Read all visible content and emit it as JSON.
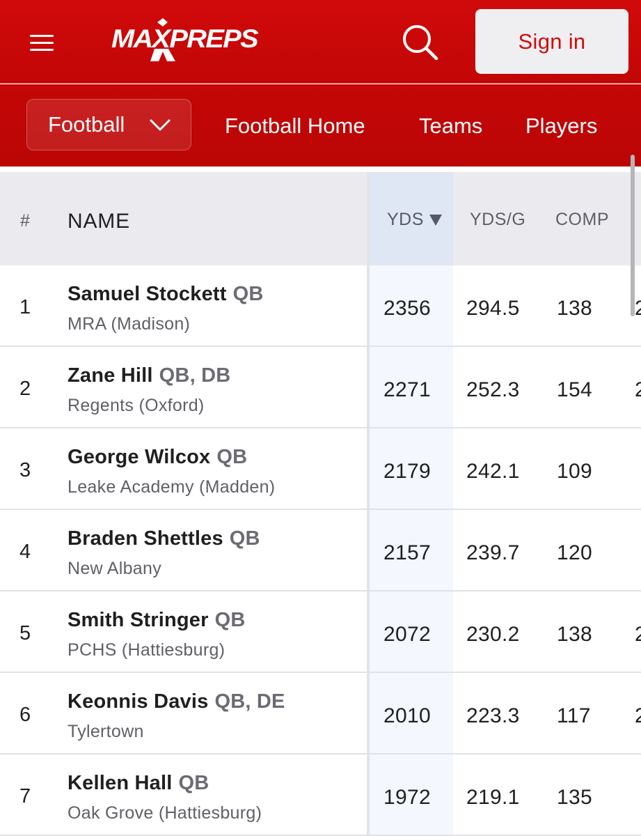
{
  "header": {
    "logo_text": "MAXPREPS",
    "signin_label": "Sign in",
    "menu_icon": "hamburger-menu-icon",
    "search_icon": "search-icon",
    "colors": {
      "brand_red": "#d10a0a",
      "header_bg": "#c20606"
    }
  },
  "subnav": {
    "sport_label": "Football",
    "links": [
      "Football Home",
      "Teams",
      "Players"
    ]
  },
  "table": {
    "columns": {
      "rank": "#",
      "name": "NAME",
      "yds": "YDS",
      "ydsg": "YDS/G",
      "comp": "COMP"
    },
    "sorted_column": "YDS",
    "sort_direction": "descending",
    "rows": [
      {
        "rank": "1",
        "name": "Samuel Stockett",
        "pos": "QB",
        "school": "MRA (Madison)",
        "yds": "2356",
        "ydsg": "294.5",
        "comp": "138",
        "next": "2"
      },
      {
        "rank": "2",
        "name": "Zane Hill",
        "pos": "QB, DB",
        "school": "Regents (Oxford)",
        "yds": "2271",
        "ydsg": "252.3",
        "comp": "154",
        "next": "2"
      },
      {
        "rank": "3",
        "name": "George Wilcox",
        "pos": "QB",
        "school": "Leake Academy (Madden)",
        "yds": "2179",
        "ydsg": "242.1",
        "comp": "109",
        "next": ""
      },
      {
        "rank": "4",
        "name": "Braden Shettles",
        "pos": "QB",
        "school": "New Albany",
        "yds": "2157",
        "ydsg": "239.7",
        "comp": "120",
        "next": ""
      },
      {
        "rank": "5",
        "name": "Smith Stringer",
        "pos": "QB",
        "school": "PCHS (Hattiesburg)",
        "yds": "2072",
        "ydsg": "230.2",
        "comp": "138",
        "next": "2"
      },
      {
        "rank": "6",
        "name": "Keonnis Davis",
        "pos": "QB, DE",
        "school": "Tylertown",
        "yds": "2010",
        "ydsg": "223.3",
        "comp": "117",
        "next": "2"
      },
      {
        "rank": "7",
        "name": "Kellen Hall",
        "pos": "QB",
        "school": "Oak Grove (Hattiesburg)",
        "yds": "1972",
        "ydsg": "219.1",
        "comp": "135",
        "next": ""
      }
    ]
  }
}
